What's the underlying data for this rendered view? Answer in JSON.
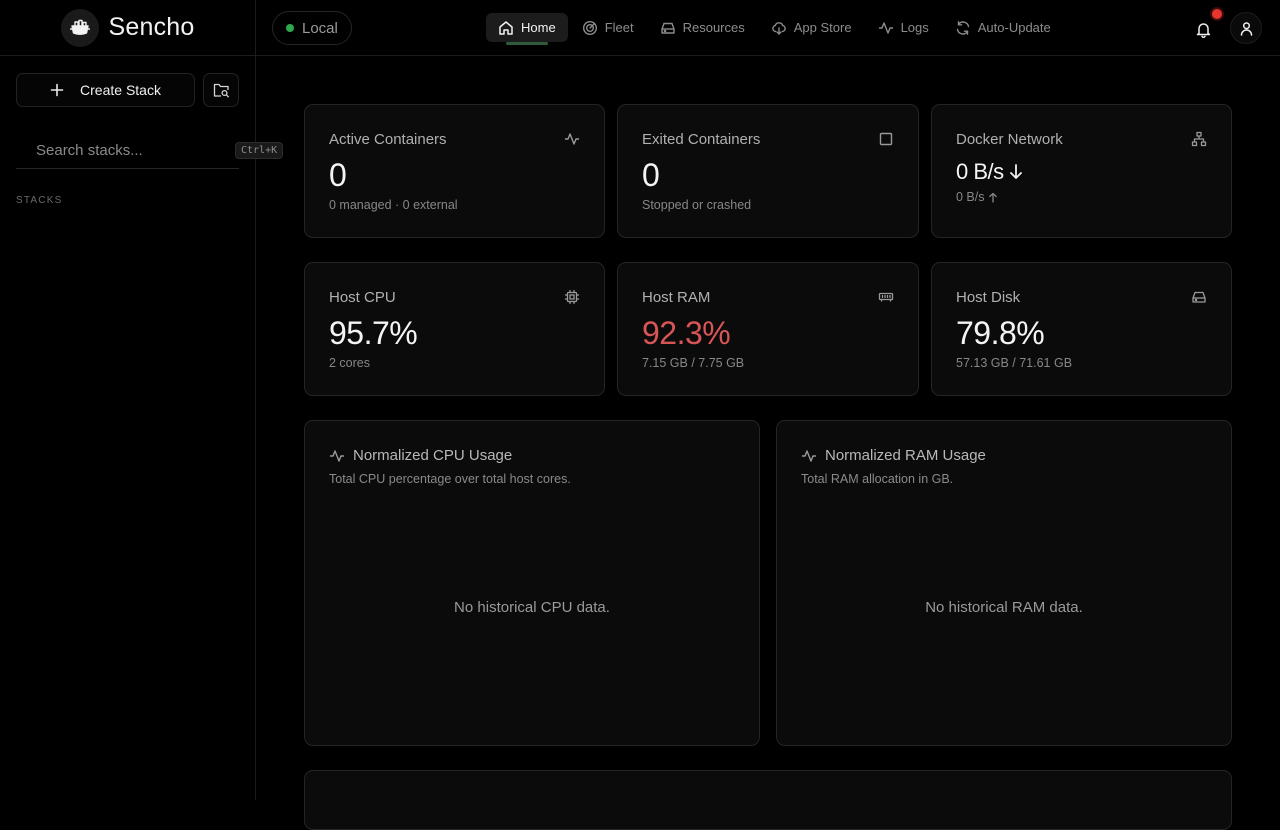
{
  "brand": {
    "name": "Sencho"
  },
  "sidebar": {
    "create_label": "Create Stack",
    "search_placeholder": "Search stacks...",
    "search_shortcut": "Ctrl+K",
    "stacks_heading": "STACKS"
  },
  "topbar": {
    "node_label": "Local",
    "nav": [
      {
        "label": "Home",
        "icon": "home-icon"
      },
      {
        "label": "Fleet",
        "icon": "radar-icon"
      },
      {
        "label": "Resources",
        "icon": "hard-drive-icon"
      },
      {
        "label": "App Store",
        "icon": "cloud-download-icon"
      },
      {
        "label": "Logs",
        "icon": "activity-icon"
      },
      {
        "label": "Auto-Update",
        "icon": "refresh-icon"
      }
    ]
  },
  "stats": {
    "active": {
      "title": "Active Containers",
      "value": "0",
      "sub": "0 managed · 0 external"
    },
    "exited": {
      "title": "Exited Containers",
      "value": "0",
      "sub": "Stopped or crashed"
    },
    "network": {
      "title": "Docker Network",
      "value": "0 B/s",
      "sub": "0 B/s"
    },
    "cpu": {
      "title": "Host CPU",
      "value": "95.7%",
      "sub": "2 cores"
    },
    "ram": {
      "title": "Host RAM",
      "value": "92.3%",
      "sub": "7.15 GB / 7.75 GB"
    },
    "disk": {
      "title": "Host Disk",
      "value": "79.8%",
      "sub": "57.13 GB / 71.61 GB"
    }
  },
  "charts": {
    "cpu": {
      "title": "Normalized CPU Usage",
      "desc": "Total CPU percentage over total host cores.",
      "empty": "No historical CPU data."
    },
    "ram": {
      "title": "Normalized RAM Usage",
      "desc": "Total RAM allocation in GB.",
      "empty": "No historical RAM data."
    }
  },
  "colors": {
    "danger": "#d95555",
    "online": "#2fa84f",
    "notification": "#e5352f"
  }
}
